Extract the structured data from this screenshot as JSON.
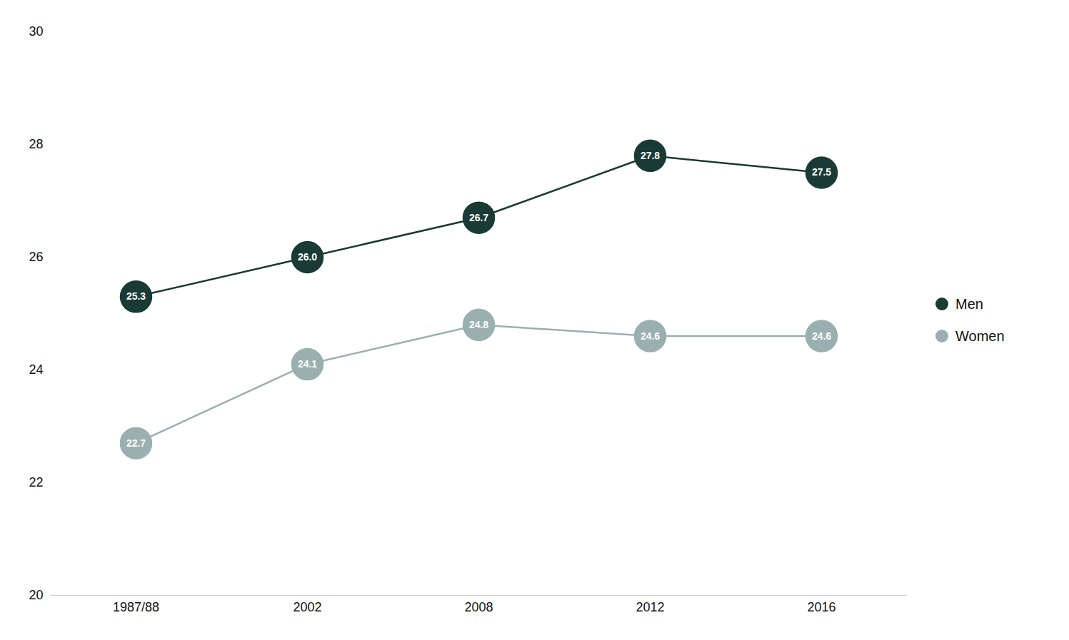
{
  "chart_data": {
    "type": "line",
    "categories": [
      "1987/88",
      "2002",
      "2008",
      "2012",
      "2016"
    ],
    "series": [
      {
        "name": "Men",
        "color": "#1a3a35",
        "values": [
          25.3,
          26.0,
          26.7,
          27.8,
          27.5
        ],
        "value_labels": [
          "25.3",
          "26.0",
          "26.7",
          "27.8",
          "27.5"
        ]
      },
      {
        "name": "Women",
        "color": "#9ab0b0",
        "values": [
          22.7,
          24.1,
          24.8,
          24.6,
          24.6
        ],
        "value_labels": [
          "22.7",
          "24.1",
          "24.8",
          "24.6",
          "24.6"
        ]
      }
    ],
    "ylim": [
      20,
      30
    ],
    "yticks": [
      20,
      22,
      24,
      26,
      28,
      30
    ],
    "grid": false,
    "legend": "right",
    "data_labels": true,
    "marker": "circle"
  }
}
